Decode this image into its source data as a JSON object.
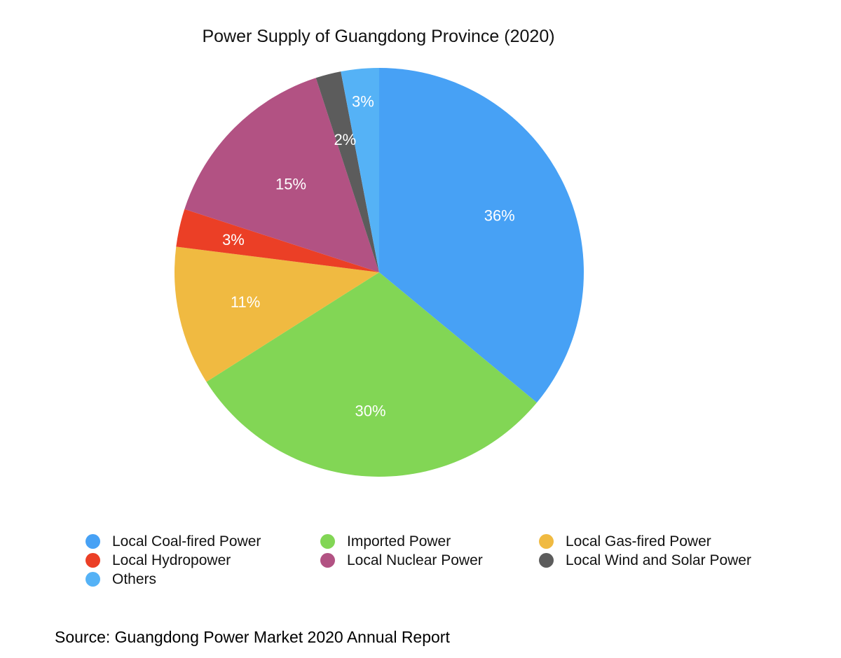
{
  "chart_data": {
    "type": "pie",
    "title": "Power Supply of Guangdong Province (2020)",
    "slices": [
      {
        "label": "Local Coal-fired Power",
        "value": 36,
        "display": "36%",
        "color": "#47A1F5"
      },
      {
        "label": "Imported Power",
        "value": 30,
        "display": "30%",
        "color": "#82D655"
      },
      {
        "label": "Local Gas-fired Power",
        "value": 11,
        "display": "11%",
        "color": "#F0BA41"
      },
      {
        "label": "Local Hydropower",
        "value": 3,
        "display": "3%",
        "color": "#EB3F26"
      },
      {
        "label": "Local Nuclear Power",
        "value": 15,
        "display": "15%",
        "color": "#B25283"
      },
      {
        "label": "Local Wind and Solar Power",
        "value": 2,
        "display": "2%",
        "color": "#5C5C5C"
      },
      {
        "label": "Others",
        "value": 3,
        "display": "3%",
        "color": "#55B2F6"
      }
    ],
    "legend_placement": "bottom",
    "start_angle": "12 o'clock",
    "direction": "clockwise"
  },
  "legend": {
    "items": [
      {
        "label": "Local Coal-fired Power",
        "color": "#47A1F5"
      },
      {
        "label": "Imported Power",
        "color": "#82D655"
      },
      {
        "label": "Local Gas-fired Power",
        "color": "#F0BA41"
      },
      {
        "label": "Local Hydropower",
        "color": "#EB3F26"
      },
      {
        "label": "Local Nuclear Power",
        "color": "#B25283"
      },
      {
        "label": "Local Wind and Solar Power",
        "color": "#5C5C5C"
      },
      {
        "label": "Others",
        "color": "#55B2F6"
      }
    ]
  },
  "source": "Source: Guangdong Power Market 2020 Annual Report"
}
